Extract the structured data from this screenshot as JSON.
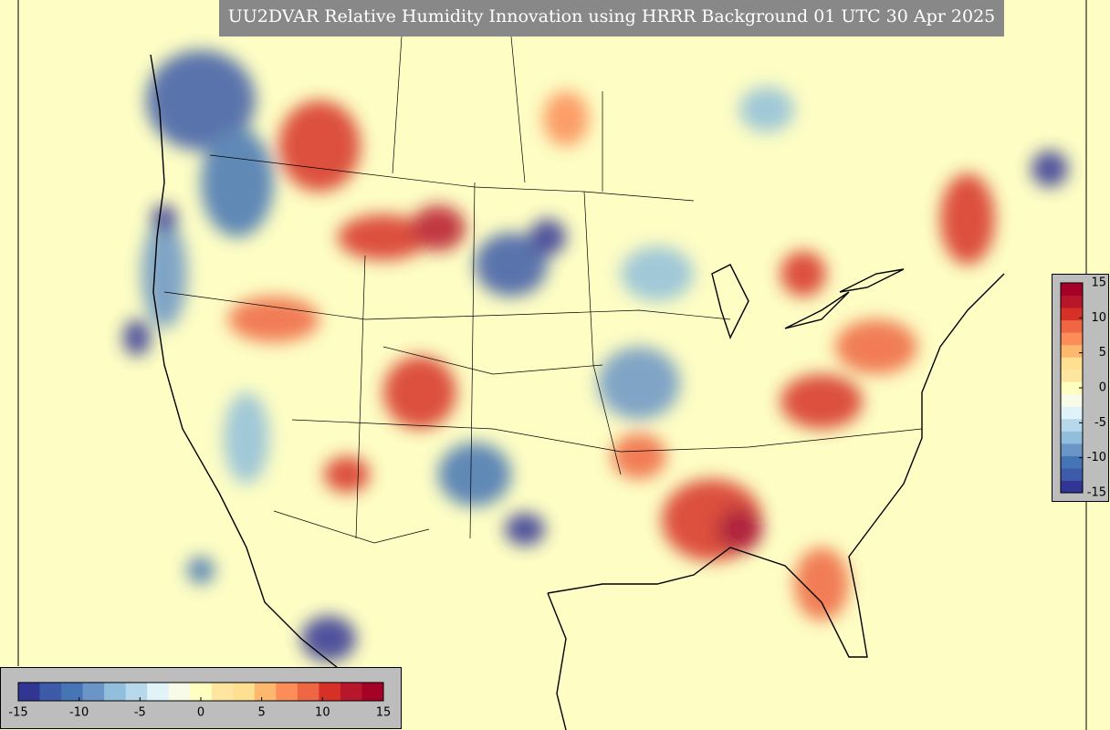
{
  "title": "UU2DVAR Relative Humidity Innovation using HRRR Background 01 UTC 30 Apr 2025",
  "colorbar_horizontal": {
    "lim": [
      -15,
      15
    ],
    "ticks": [
      -15,
      -10,
      -5,
      0,
      5,
      10,
      15
    ]
  },
  "colorbar_vertical": {
    "lim": [
      -15,
      15
    ],
    "ticks": [
      -15,
      -10,
      -5,
      0,
      5,
      10,
      15
    ]
  },
  "colormap": [
    "#313695",
    "#3d5ba8",
    "#4575b4",
    "#6a95c6",
    "#91bfdb",
    "#b7d8ea",
    "#e0f3f8",
    "#f7fbe8",
    "#ffffbf",
    "#fee6a0",
    "#fee090",
    "#fdb86e",
    "#fc8d59",
    "#ef6643",
    "#d73027",
    "#b8162a",
    "#a50026"
  ]
}
